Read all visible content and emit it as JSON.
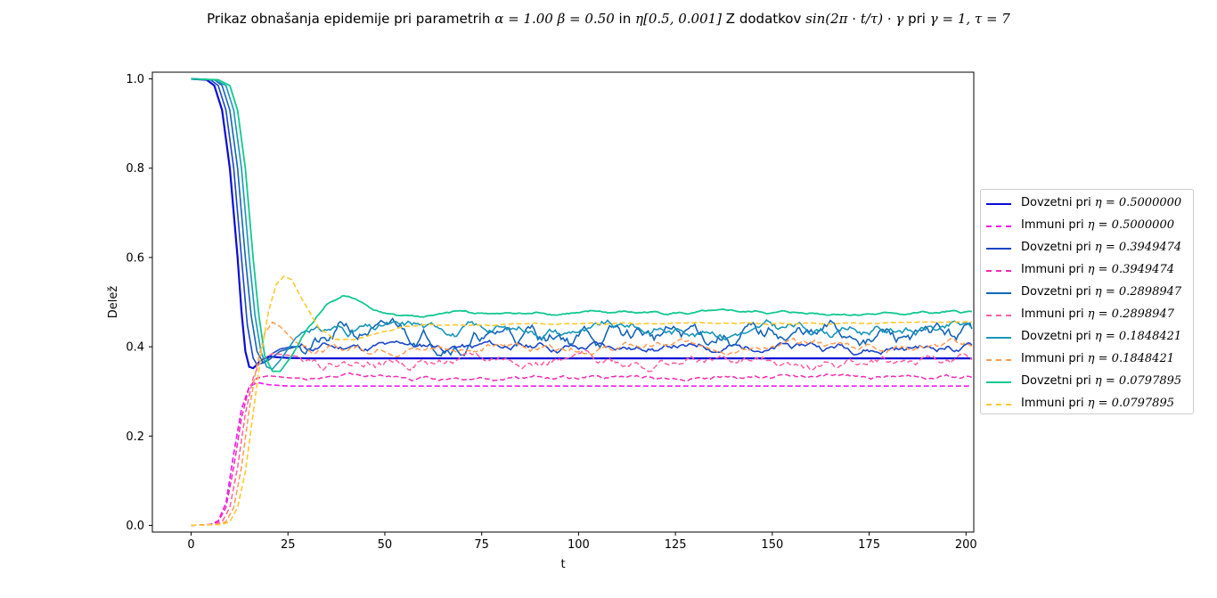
{
  "chart_data": {
    "type": "line",
    "title": "Prikaz obnašanja epidemije pri parametrih α = 1.00 β = 0.50 in η[0.5, 0.001] Z dodatkov sin(2π · t/τ) · γ pri γ = 1, τ = 7",
    "title_parts": {
      "prefix": "Prikaz obnašanja epidemije pri parametrih ",
      "math1": "α = 1.00 β = 0.50",
      "middle": " in ",
      "math2": "η[0.5, 0.001]",
      "middle2": " Z dodatkov ",
      "math3": "sin(2π · t/τ) · γ",
      "middle3": " pri ",
      "math4": "γ = 1, τ = 7"
    },
    "xlabel": "t",
    "ylabel": "Delež",
    "xlim": [
      -10,
      202
    ],
    "ylim": [
      -0.015,
      1.015
    ],
    "x_ticks": [
      0,
      25,
      50,
      75,
      100,
      125,
      150,
      175,
      200
    ],
    "y_ticks": [
      "0.0",
      "0.2",
      "0.4",
      "0.6",
      "0.8",
      "1.0"
    ],
    "grid": false,
    "legend_position": "right, outside plot",
    "series": [
      {
        "name": "Dovzetni pri η = 0.5000000",
        "label_prefix": "Dovzetni pri ",
        "label_math": "η = 0.5000000",
        "color": "#0b0bd6",
        "style": "solid",
        "width": 2.2,
        "kind": "S",
        "points": [
          [
            0,
            1.0
          ],
          [
            4,
            0.998
          ],
          [
            6,
            0.985
          ],
          [
            8,
            0.93
          ],
          [
            10,
            0.8
          ],
          [
            12,
            0.6
          ],
          [
            13,
            0.48
          ],
          [
            14,
            0.39
          ],
          [
            15,
            0.355
          ],
          [
            16,
            0.352
          ],
          [
            17,
            0.36
          ],
          [
            18,
            0.37
          ],
          [
            20,
            0.378
          ],
          [
            25,
            0.375
          ],
          [
            30,
            0.374
          ],
          [
            202,
            0.374
          ]
        ]
      },
      {
        "name": "Immuni pri η = 0.5000000",
        "label_prefix": "Immuni pri ",
        "label_math": "η = 0.5000000",
        "color": "#f01ef0",
        "style": "dashed",
        "width": 1.7,
        "kind": "I",
        "points": [
          [
            0,
            0.0
          ],
          [
            5,
            0.002
          ],
          [
            7,
            0.01
          ],
          [
            9,
            0.05
          ],
          [
            11,
            0.16
          ],
          [
            13,
            0.26
          ],
          [
            15,
            0.31
          ],
          [
            17,
            0.32
          ],
          [
            20,
            0.315
          ],
          [
            25,
            0.312
          ],
          [
            202,
            0.312
          ]
        ]
      },
      {
        "name": "Dovzetni pri η = 0.3949474",
        "label_prefix": "Dovzetni pri ",
        "label_math": "η = 0.3949474",
        "color": "#1a45c8",
        "style": "solid",
        "width": 1.6,
        "kind": "S",
        "points": [
          [
            0,
            1.0
          ],
          [
            5,
            0.998
          ],
          [
            7,
            0.985
          ],
          [
            9,
            0.93
          ],
          [
            11,
            0.8
          ],
          [
            13,
            0.6
          ],
          [
            14.5,
            0.45
          ],
          [
            16,
            0.375
          ],
          [
            17,
            0.36
          ],
          [
            19,
            0.365
          ],
          [
            21,
            0.385
          ],
          [
            23,
            0.395
          ],
          [
            26,
            0.4
          ],
          [
            202,
            0.4
          ]
        ],
        "noise": 0.012,
        "seed": 11
      },
      {
        "name": "Immuni pri η = 0.3949474",
        "label_prefix": "Immuni pri ",
        "label_math": "η = 0.3949474",
        "color": "#f02ab4",
        "style": "dashed",
        "width": 1.5,
        "kind": "I",
        "points": [
          [
            0,
            0.0
          ],
          [
            5,
            0.002
          ],
          [
            7,
            0.008
          ],
          [
            9,
            0.04
          ],
          [
            11,
            0.13
          ],
          [
            13,
            0.24
          ],
          [
            15,
            0.31
          ],
          [
            17,
            0.33
          ],
          [
            20,
            0.335
          ],
          [
            26,
            0.33
          ],
          [
            202,
            0.335
          ]
        ],
        "noise": 0.006,
        "seed": 12
      },
      {
        "name": "Dovzetni pri η = 0.2898947",
        "label_prefix": "Dovzetni pri ",
        "label_math": "η = 0.2898947",
        "color": "#1565b8",
        "style": "solid",
        "width": 1.6,
        "kind": "S",
        "points": [
          [
            0,
            1.0
          ],
          [
            6,
            0.998
          ],
          [
            8,
            0.985
          ],
          [
            10,
            0.93
          ],
          [
            12,
            0.8
          ],
          [
            14,
            0.6
          ],
          [
            15.5,
            0.47
          ],
          [
            17,
            0.39
          ],
          [
            18.5,
            0.365
          ],
          [
            20,
            0.37
          ],
          [
            23,
            0.39
          ],
          [
            27,
            0.4
          ],
          [
            35,
            0.41
          ],
          [
            40,
            0.43
          ],
          [
            202,
            0.42
          ]
        ],
        "noise": 0.025,
        "seed": 21
      },
      {
        "name": "Immuni pri η = 0.2898947",
        "label_prefix": "Immuni pri ",
        "label_math": "η = 0.2898947",
        "color": "#ff5fa0",
        "style": "dashed",
        "width": 1.5,
        "kind": "I",
        "points": [
          [
            0,
            0.0
          ],
          [
            6,
            0.002
          ],
          [
            8,
            0.008
          ],
          [
            10,
            0.04
          ],
          [
            12,
            0.13
          ],
          [
            14,
            0.25
          ],
          [
            16,
            0.33
          ],
          [
            18,
            0.37
          ],
          [
            21,
            0.385
          ],
          [
            26,
            0.38
          ],
          [
            35,
            0.37
          ],
          [
            202,
            0.365
          ]
        ],
        "noise": 0.014,
        "seed": 22
      },
      {
        "name": "Dovzetni pri η = 0.1848421",
        "label_prefix": "Dovzetni pri ",
        "label_math": "η = 0.1848421",
        "color": "#1896b8",
        "style": "solid",
        "width": 1.6,
        "kind": "S",
        "points": [
          [
            0,
            1.0
          ],
          [
            6,
            0.998
          ],
          [
            9,
            0.985
          ],
          [
            11,
            0.93
          ],
          [
            13,
            0.8
          ],
          [
            15,
            0.6
          ],
          [
            16.5,
            0.47
          ],
          [
            18,
            0.39
          ],
          [
            19.5,
            0.355
          ],
          [
            21,
            0.35
          ],
          [
            23,
            0.37
          ],
          [
            27,
            0.42
          ],
          [
            31,
            0.445
          ],
          [
            36,
            0.44
          ],
          [
            45,
            0.44
          ],
          [
            60,
            0.44
          ],
          [
            202,
            0.44
          ]
        ],
        "noise": 0.015,
        "seed": 31
      },
      {
        "name": "Immuni pri η = 0.1848421",
        "label_prefix": "Immuni pri ",
        "label_math": "η = 0.1848421",
        "color": "#ff9c50",
        "style": "dashed",
        "width": 1.5,
        "kind": "I",
        "points": [
          [
            0,
            0.0
          ],
          [
            7,
            0.002
          ],
          [
            9,
            0.008
          ],
          [
            11,
            0.04
          ],
          [
            13,
            0.13
          ],
          [
            15,
            0.26
          ],
          [
            17,
            0.36
          ],
          [
            19,
            0.43
          ],
          [
            21,
            0.455
          ],
          [
            23,
            0.445
          ],
          [
            27,
            0.41
          ],
          [
            32,
            0.395
          ],
          [
            40,
            0.395
          ],
          [
            50,
            0.4
          ],
          [
            202,
            0.405
          ]
        ],
        "noise": 0.01,
        "seed": 32
      },
      {
        "name": "Dovzetni pri η = 0.0797895",
        "label_prefix": "Dovzetni pri ",
        "label_math": "η = 0.0797895",
        "color": "#12c890",
        "style": "solid",
        "width": 1.8,
        "kind": "S",
        "points": [
          [
            0,
            1.0
          ],
          [
            7,
            0.998
          ],
          [
            10,
            0.985
          ],
          [
            12,
            0.93
          ],
          [
            14,
            0.8
          ],
          [
            16,
            0.6
          ],
          [
            17.5,
            0.47
          ],
          [
            19,
            0.38
          ],
          [
            21,
            0.345
          ],
          [
            23,
            0.345
          ],
          [
            26,
            0.38
          ],
          [
            30,
            0.44
          ],
          [
            35,
            0.495
          ],
          [
            39,
            0.515
          ],
          [
            43,
            0.505
          ],
          [
            48,
            0.48
          ],
          [
            53,
            0.47
          ],
          [
            60,
            0.468
          ],
          [
            68,
            0.476
          ],
          [
            80,
            0.473
          ],
          [
            100,
            0.476
          ],
          [
            202,
            0.475
          ]
        ],
        "noise": 0.004,
        "seed": 41
      },
      {
        "name": "Immuni pri η = 0.0797895",
        "label_prefix": "Immuni pri ",
        "label_math": "η = 0.0797895",
        "color": "#ffc830",
        "style": "dashed",
        "width": 1.6,
        "kind": "I",
        "points": [
          [
            0,
            0.0
          ],
          [
            8,
            0.002
          ],
          [
            10,
            0.008
          ],
          [
            12,
            0.04
          ],
          [
            14,
            0.12
          ],
          [
            16,
            0.25
          ],
          [
            18,
            0.38
          ],
          [
            20,
            0.48
          ],
          [
            22,
            0.54
          ],
          [
            24,
            0.558
          ],
          [
            26,
            0.55
          ],
          [
            29,
            0.5
          ],
          [
            33,
            0.44
          ],
          [
            37,
            0.415
          ],
          [
            42,
            0.415
          ],
          [
            48,
            0.43
          ],
          [
            55,
            0.445
          ],
          [
            65,
            0.45
          ],
          [
            80,
            0.45
          ],
          [
            100,
            0.452
          ],
          [
            202,
            0.454
          ]
        ],
        "noise": 0.002,
        "seed": 42
      }
    ]
  }
}
